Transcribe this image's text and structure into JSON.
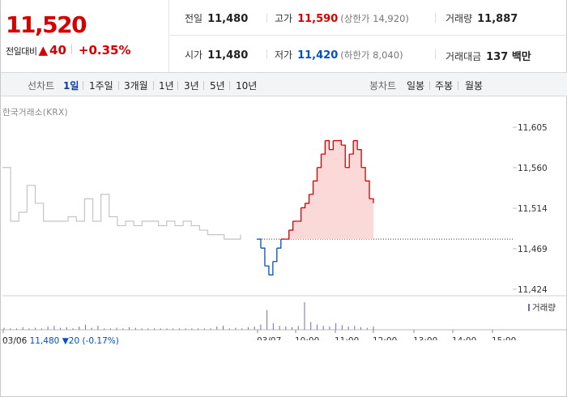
{
  "header": {
    "price": "11,520",
    "change_label": "전일대비",
    "change_symbol": "▲",
    "change_value": "40",
    "change_pct": "+0.35%",
    "stats": {
      "prev_close": {
        "label": "전일",
        "value": "11,480"
      },
      "open": {
        "label": "시가",
        "value": "11,480"
      },
      "high": {
        "label": "고가",
        "value": "11,590",
        "note": "(상한가 14,920)"
      },
      "low": {
        "label": "저가",
        "value": "11,420",
        "note": "(하한가 8,040)"
      },
      "volume": {
        "label": "거래량",
        "value": "11,887"
      },
      "amount": {
        "label": "거래대금",
        "value": "137 백만"
      }
    }
  },
  "toolbar": {
    "line_label": "선차트",
    "line_periods": [
      "1일",
      "1주일",
      "3개월",
      "1년",
      "3년",
      "5년",
      "10년"
    ],
    "active_period": "1일",
    "candle_label": "봉차트",
    "candle_periods": [
      "일봉",
      "주봉",
      "월봉"
    ]
  },
  "source_label": "한국거래소(KRX)",
  "footer": {
    "date": "03/06",
    "close": "11,480",
    "symbol": "▼",
    "change": "20",
    "pct": "(-0.17%)"
  },
  "colors": {
    "up": "#d60000",
    "down": "#0050c8",
    "prev_day_line": "#c4c4c4",
    "up_fill": "#fbd9d9",
    "volume": "#7c6aa8"
  },
  "chart_data": {
    "type": "line",
    "y_ticks": [
      "11,605",
      "11,560",
      "11,514",
      "11,469",
      "11,424"
    ],
    "ylim": [
      11424,
      11605
    ],
    "baseline": 11480,
    "x_ticks": [
      "03/06",
      "03/07",
      "10:00",
      "11:00",
      "12:00",
      "13:00",
      "14:00",
      "15:00"
    ],
    "volume_legend": "거래량",
    "series": [
      {
        "name": "",
        "segment": "03/06",
        "values": [
          11560,
          11500,
          11510,
          11540,
          11520,
          11500,
          11500,
          11500,
          11505,
          11500,
          11525,
          11500,
          11530,
          11505,
          11495,
          11500,
          11495,
          11500,
          11500,
          11495,
          11500,
          11495,
          11500,
          11495,
          11490,
          11485,
          11485,
          11480,
          11480,
          11485
        ]
      },
      {
        "name": "",
        "segment": "03/07",
        "values": [
          11480,
          11470,
          11450,
          11440,
          11455,
          11470,
          11480,
          11480,
          11490,
          11500,
          11500,
          11515,
          11520,
          11530,
          11545,
          11560,
          11575,
          11590,
          11580,
          11590,
          11590,
          11585,
          11560,
          11575,
          11590,
          11580,
          11560,
          11545,
          11525,
          11520
        ]
      }
    ],
    "volume": [
      3,
      2,
      2,
      4,
      2,
      3,
      2,
      5,
      6,
      3,
      4,
      2,
      5,
      8,
      3,
      6,
      2,
      2,
      3,
      2,
      4,
      3,
      2,
      2,
      2,
      2,
      2,
      2,
      2,
      2,
      2,
      2,
      2,
      2,
      5,
      6,
      2,
      3,
      2,
      4,
      5,
      8,
      30,
      10,
      6,
      5,
      4,
      6,
      42,
      12,
      8,
      6,
      5,
      10,
      7,
      5,
      6,
      4,
      3,
      5
    ]
  }
}
